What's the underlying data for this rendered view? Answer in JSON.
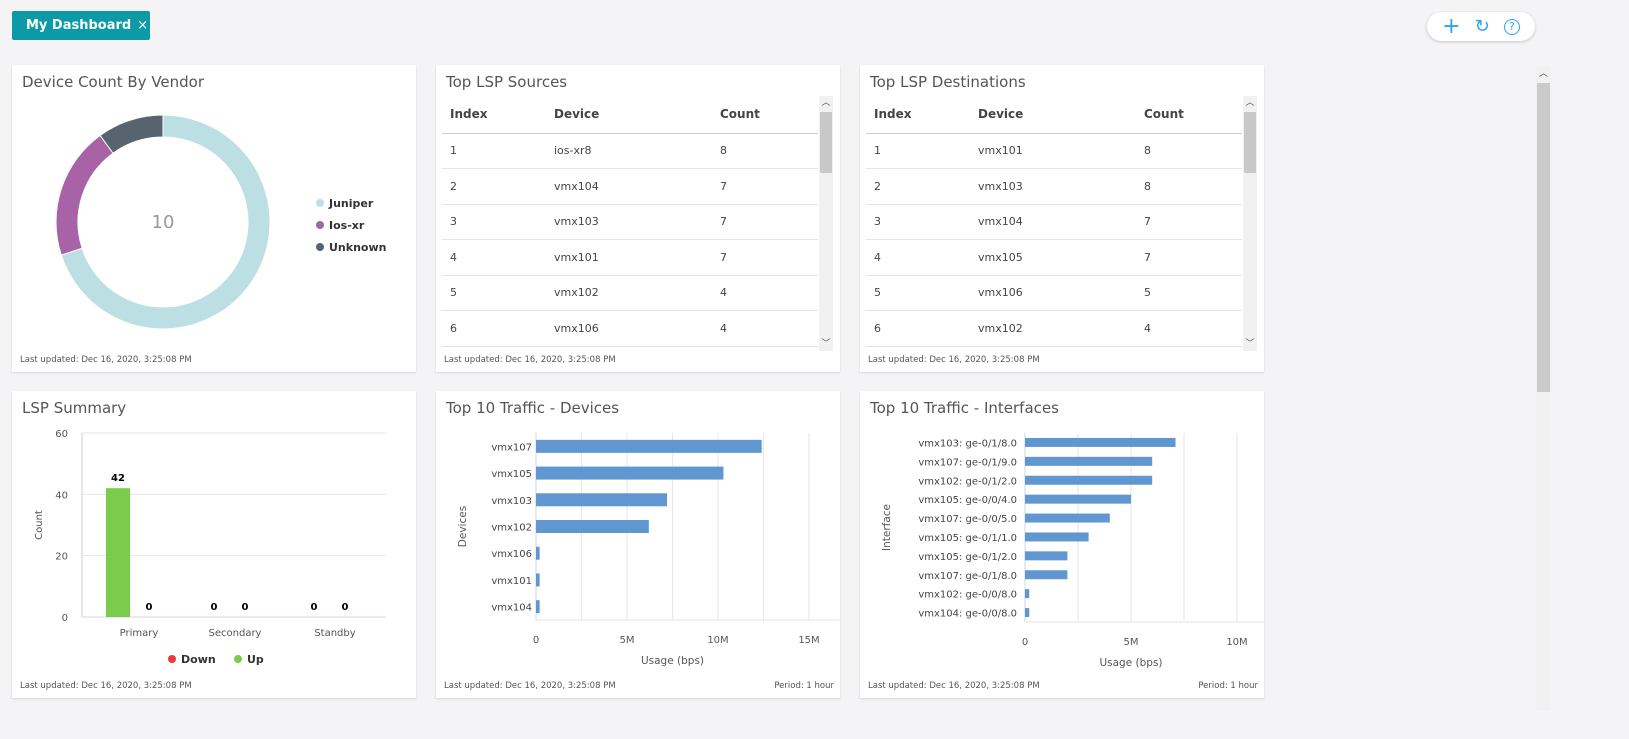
{
  "tab": {
    "label": "My Dashboard",
    "close": "×"
  },
  "toolbar": {
    "add": "+",
    "refresh": "↻",
    "help": "?"
  },
  "colors": {
    "accent": "#0b9aa6",
    "juniper": "#bcdfe3",
    "iosxr": "#a763a5",
    "unknown": "#57636e",
    "up": "#7ccc4c",
    "down": "#f5343c",
    "bar": "#6197d0"
  },
  "footer": {
    "last_updated": "Last updated: Dec 16, 2020, 3:25:08 PM",
    "period": "Period: 1 hour"
  },
  "vendor": {
    "title": "Device Count By Vendor",
    "total": "10"
  },
  "sources": {
    "title": "Top LSP Sources",
    "columns": [
      "Index",
      "Device",
      "Count"
    ],
    "rows": [
      [
        "1",
        "ios-xr8",
        "8"
      ],
      [
        "2",
        "vmx104",
        "7"
      ],
      [
        "3",
        "vmx103",
        "7"
      ],
      [
        "4",
        "vmx101",
        "7"
      ],
      [
        "5",
        "vmx102",
        "4"
      ],
      [
        "6",
        "vmx106",
        "4"
      ]
    ]
  },
  "destinations": {
    "title": "Top LSP Destinations",
    "columns": [
      "Index",
      "Device",
      "Count"
    ],
    "rows": [
      [
        "1",
        "vmx101",
        "8"
      ],
      [
        "2",
        "vmx103",
        "8"
      ],
      [
        "3",
        "vmx104",
        "7"
      ],
      [
        "4",
        "vmx105",
        "7"
      ],
      [
        "5",
        "vmx106",
        "5"
      ],
      [
        "6",
        "vmx102",
        "4"
      ]
    ]
  },
  "lsp": {
    "title": "LSP Summary"
  },
  "devices": {
    "title": "Top 10 Traffic - Devices"
  },
  "interfaces": {
    "title": "Top 10 Traffic - Interfaces"
  },
  "chart_data": [
    {
      "type": "pie",
      "donut": true,
      "categories": [
        "Juniper",
        "Ios-xr",
        "Unknown"
      ],
      "values": [
        7,
        2,
        1
      ],
      "center_label": "10",
      "legend": "right"
    },
    {
      "type": "bar",
      "categories": [
        "Primary",
        "Secondary",
        "Standby"
      ],
      "ylabel": "Count",
      "ylim": [
        0,
        60
      ],
      "yticks": [
        "0",
        "20",
        "40",
        "60"
      ],
      "series": [
        {
          "name": "Up",
          "values": [
            42,
            0,
            0
          ]
        },
        {
          "name": "Down",
          "values": [
            0,
            0,
            0
          ]
        }
      ],
      "legend_order": [
        "Down",
        "Up"
      ],
      "legend": "bottom",
      "grid": true
    },
    {
      "type": "bar",
      "orientation": "horizontal",
      "categories": [
        "vmx107",
        "vmx105",
        "vmx103",
        "vmx102",
        "vmx106",
        "vmx101",
        "vmx104"
      ],
      "values": [
        12.4,
        10.3,
        7.2,
        6.2,
        0.2,
        0.2,
        0.2
      ],
      "unit": "M",
      "xlabel": "Usage (bps)",
      "ylabel": "Devices",
      "xlim": [
        0,
        15
      ],
      "xticks": [
        "0",
        "5M",
        "10M",
        "15M"
      ],
      "grid": true
    },
    {
      "type": "bar",
      "orientation": "horizontal",
      "categories": [
        "vmx103: ge-0/1/8.0",
        "vmx107: ge-0/1/9.0",
        "vmx102: ge-0/1/2.0",
        "vmx105: ge-0/0/4.0",
        "vmx107: ge-0/0/5.0",
        "vmx105: ge-0/1/1.0",
        "vmx105: ge-0/1/2.0",
        "vmx107: ge-0/1/8.0",
        "vmx102: ge-0/0/8.0",
        "vmx104: ge-0/0/8.0"
      ],
      "values": [
        7.1,
        6.0,
        6.0,
        5.0,
        4.0,
        3.0,
        2.0,
        2.0,
        0.2,
        0.2
      ],
      "unit": "M",
      "xlabel": "Usage (bps)",
      "ylabel": "Interface",
      "xlim": [
        0,
        10
      ],
      "xticks": [
        "0",
        "5M",
        "10M"
      ],
      "grid": true
    }
  ]
}
